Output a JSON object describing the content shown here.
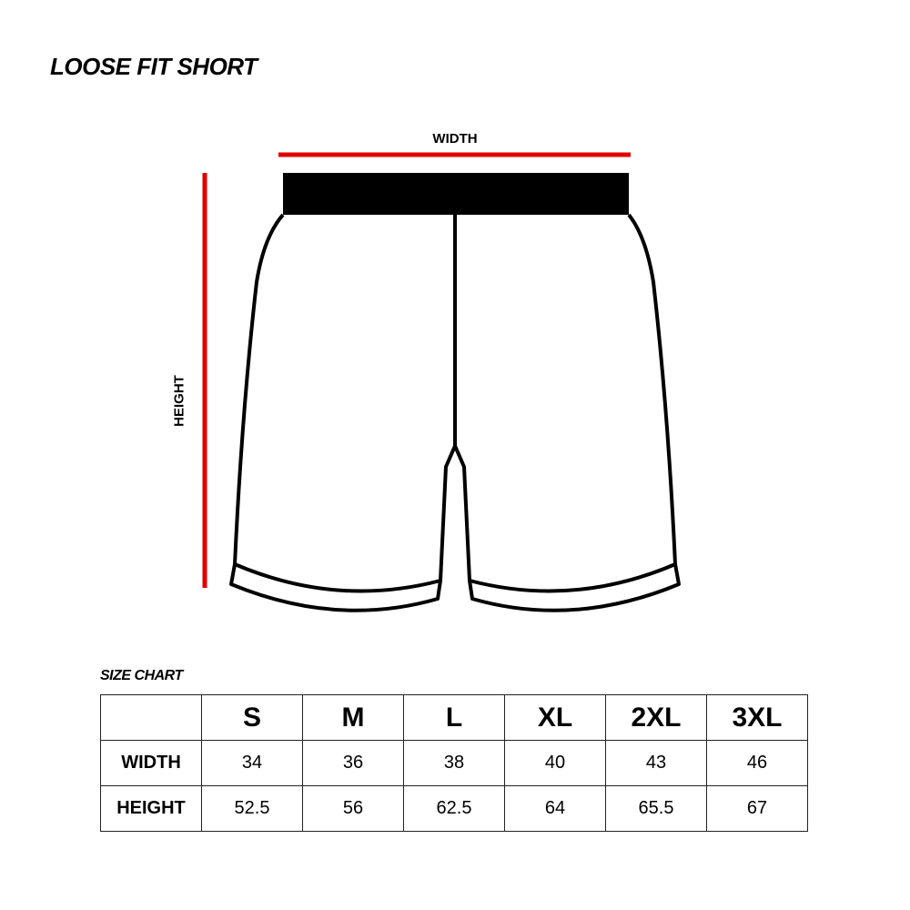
{
  "title": "LOOSE FIT SHORT",
  "diagram": {
    "width_label": "WIDTH",
    "height_label": "HEIGHT",
    "measure_color": "#e00000",
    "waistband_color": "#000000"
  },
  "size_chart": {
    "title": "SIZE CHART",
    "sizes": [
      "S",
      "M",
      "L",
      "XL",
      "2XL",
      "3XL"
    ],
    "rows": [
      {
        "label": "WIDTH",
        "values": [
          "34",
          "36",
          "38",
          "40",
          "43",
          "46"
        ]
      },
      {
        "label": "HEIGHT",
        "values": [
          "52.5",
          "56",
          "62.5",
          "64",
          "65.5",
          "67"
        ]
      }
    ]
  }
}
